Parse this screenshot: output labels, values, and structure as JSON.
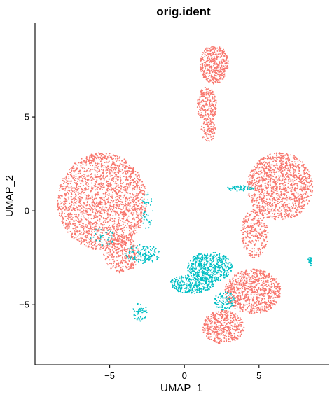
{
  "chart_data": {
    "type": "scatter",
    "title": "orig.ident",
    "xlabel": "UMAP_1",
    "ylabel": "UMAP_2",
    "xlim": [
      -10.0,
      9.7
    ],
    "ylim": [
      -8.2,
      10.0
    ],
    "x_ticks": [
      -5,
      0,
      5
    ],
    "y_ticks": [
      -5,
      0,
      5
    ],
    "x_tick_labels": [
      "−5",
      "0",
      "5"
    ],
    "y_tick_labels": [
      "−5",
      "0",
      "5"
    ],
    "grid": false,
    "legend": "none",
    "series": [
      {
        "color": "#F8766D",
        "clusters": [
          {
            "cx": -5.5,
            "cy": 0.5,
            "rx": 3.0,
            "ry": 2.6,
            "n": 2000,
            "note": "large left cluster"
          },
          {
            "cx": -4.2,
            "cy": -2.3,
            "rx": 1.2,
            "ry": 1.0,
            "n": 300
          },
          {
            "cx": 2.0,
            "cy": 7.8,
            "rx": 0.95,
            "ry": 1.05,
            "n": 420
          },
          {
            "cx": 1.5,
            "cy": 5.6,
            "rx": 0.65,
            "ry": 1.0,
            "n": 220
          },
          {
            "cx": 1.6,
            "cy": 4.3,
            "rx": 0.5,
            "ry": 0.6,
            "n": 90
          },
          {
            "cx": 6.4,
            "cy": 1.3,
            "rx": 2.2,
            "ry": 1.8,
            "n": 1200
          },
          {
            "cx": 4.7,
            "cy": -1.2,
            "rx": 0.9,
            "ry": 1.3,
            "n": 260
          },
          {
            "cx": 4.6,
            "cy": -4.3,
            "rx": 1.9,
            "ry": 1.2,
            "n": 800
          },
          {
            "cx": 2.6,
            "cy": -6.2,
            "rx": 1.4,
            "ry": 0.9,
            "n": 450
          }
        ]
      },
      {
        "color": "#00BFC4",
        "clusters": [
          {
            "cx": 1.7,
            "cy": -3.0,
            "rx": 1.5,
            "ry": 0.8,
            "n": 500
          },
          {
            "cx": 0.5,
            "cy": -3.9,
            "rx": 1.5,
            "ry": 0.5,
            "n": 300
          },
          {
            "cx": -2.8,
            "cy": -2.3,
            "rx": 1.2,
            "ry": 0.5,
            "n": 130
          },
          {
            "cx": 2.7,
            "cy": -4.8,
            "rx": 0.7,
            "ry": 0.5,
            "n": 100
          },
          {
            "cx": 3.7,
            "cy": 1.2,
            "rx": 1.0,
            "ry": 0.15,
            "n": 60
          },
          {
            "cx": -3.0,
            "cy": -5.4,
            "rx": 0.5,
            "ry": 0.5,
            "n": 50
          },
          {
            "cx": 8.4,
            "cy": -2.7,
            "rx": 0.15,
            "ry": 0.25,
            "n": 25
          },
          {
            "cx": -2.5,
            "cy": 0.0,
            "rx": 0.4,
            "ry": 1.0,
            "n": 40
          },
          {
            "cx": -5.5,
            "cy": -1.4,
            "rx": 0.8,
            "ry": 0.5,
            "n": 40
          }
        ]
      }
    ]
  }
}
